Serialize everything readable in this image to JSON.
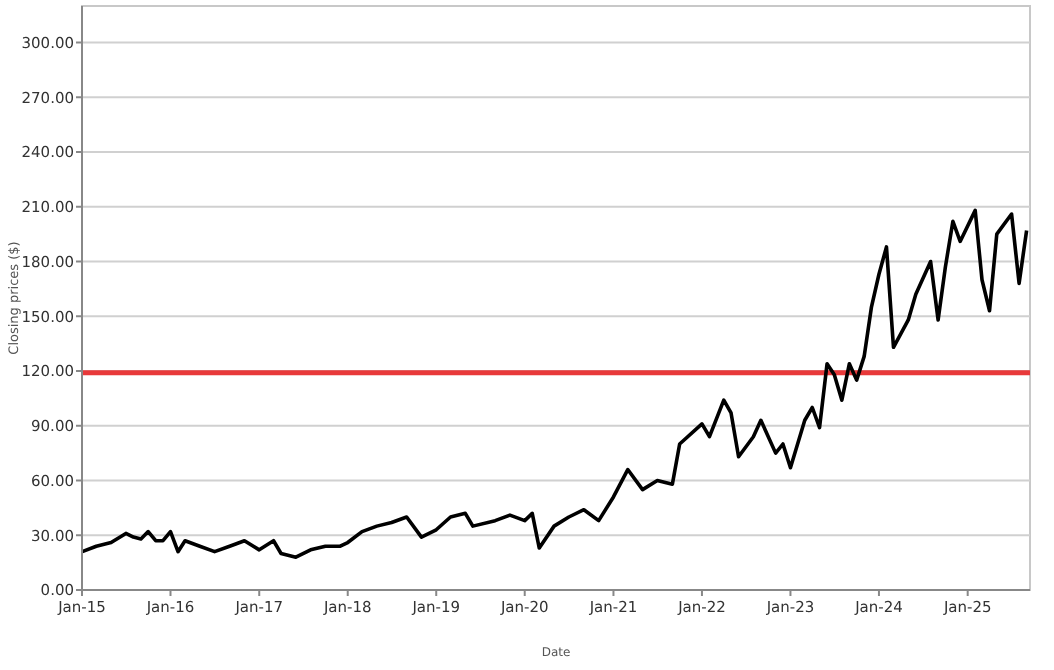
{
  "chart_data": {
    "type": "line",
    "xlabel": "Date",
    "ylabel": "Closing prices ($)",
    "grid": "y",
    "marker": "none",
    "line_style": "solid",
    "xlim": [
      "2015-01-01",
      "2025-09-15"
    ],
    "xticks": [
      {
        "value": "2015-01",
        "label": "Jan-15"
      },
      {
        "value": "2016-01",
        "label": "Jan-16"
      },
      {
        "value": "2017-01",
        "label": "Jan-17"
      },
      {
        "value": "2018-01",
        "label": "Jan-18"
      },
      {
        "value": "2019-01",
        "label": "Jan-19"
      },
      {
        "value": "2020-01",
        "label": "Jan-20"
      },
      {
        "value": "2021-01",
        "label": "Jan-21"
      },
      {
        "value": "2022-01",
        "label": "Jan-22"
      },
      {
        "value": "2023-01",
        "label": "Jan-23"
      },
      {
        "value": "2024-01",
        "label": "Jan-24"
      },
      {
        "value": "2025-01",
        "label": "Jan-25"
      }
    ],
    "ylim": [
      0,
      320
    ],
    "yticks": [
      {
        "value": 0,
        "label": "0.00"
      },
      {
        "value": 30,
        "label": "30.00"
      },
      {
        "value": 60,
        "label": "60.00"
      },
      {
        "value": 90,
        "label": "90.00"
      },
      {
        "value": 120,
        "label": "120.00"
      },
      {
        "value": 150,
        "label": "150.00"
      },
      {
        "value": 180,
        "label": "180.00"
      },
      {
        "value": 210,
        "label": "210.00"
      },
      {
        "value": 240,
        "label": "240.00"
      },
      {
        "value": 270,
        "label": "270.00"
      },
      {
        "value": 300,
        "label": "300.00"
      }
    ],
    "ref_lines": [
      {
        "axis": "y",
        "value": 119,
        "color": "#e8393a"
      }
    ],
    "x": [
      "2015-01-02",
      "2015-03",
      "2015-05",
      "2015-07",
      "2015-08",
      "2015-09",
      "2015-10",
      "2015-11",
      "2015-12",
      "2016-01",
      "2016-02",
      "2016-03",
      "2016-05",
      "2016-07",
      "2016-09",
      "2016-11",
      "2017-01",
      "2017-03",
      "2017-04",
      "2017-06",
      "2017-08",
      "2017-10",
      "2017-12",
      "2018-01",
      "2018-03",
      "2018-05",
      "2018-07",
      "2018-09",
      "2018-11",
      "2019-01",
      "2019-03",
      "2019-05",
      "2019-06",
      "2019-09",
      "2019-11",
      "2020-01",
      "2020-02",
      "2020-03",
      "2020-05",
      "2020-07",
      "2020-09",
      "2020-11",
      "2021-01",
      "2021-03",
      "2021-05",
      "2021-07",
      "2021-09",
      "2021-10",
      "2022-01",
      "2022-02",
      "2022-04",
      "2022-05",
      "2022-06",
      "2022-08",
      "2022-09",
      "2022-11",
      "2022-12",
      "2023-01",
      "2023-03",
      "2023-04",
      "2023-05",
      "2023-06",
      "2023-07",
      "2023-08",
      "2023-09",
      "2023-10",
      "2023-11",
      "2023-12",
      "2024-01",
      "2024-02",
      "2024-03",
      "2024-05",
      "2024-06",
      "2024-08",
      "2024-09",
      "2024-10",
      "2024-11",
      "2024-12",
      "2025-02",
      "2025-03",
      "2025-04",
      "2025-05",
      "2025-07",
      "2025-08",
      "2025-09"
    ],
    "series": [
      {
        "color": "#000000",
        "values": [
          21,
          24,
          26,
          31,
          29,
          28,
          32,
          27,
          27,
          32,
          21,
          27,
          24,
          21,
          24,
          27,
          22,
          27,
          20,
          18,
          22,
          24,
          24,
          26,
          32,
          35,
          37,
          40,
          29,
          33,
          40,
          42,
          35,
          38,
          41,
          38,
          42,
          23,
          35,
          40,
          44,
          38,
          51,
          66,
          55,
          60,
          58,
          80,
          91,
          84,
          104,
          97,
          73,
          84,
          93,
          75,
          80,
          67,
          93,
          100,
          89,
          124,
          118,
          104,
          124,
          115,
          128,
          155,
          173,
          188,
          133,
          148,
          162,
          180,
          148,
          177,
          202,
          191,
          208,
          170,
          153,
          195,
          206,
          168,
          197
        ]
      }
    ]
  }
}
